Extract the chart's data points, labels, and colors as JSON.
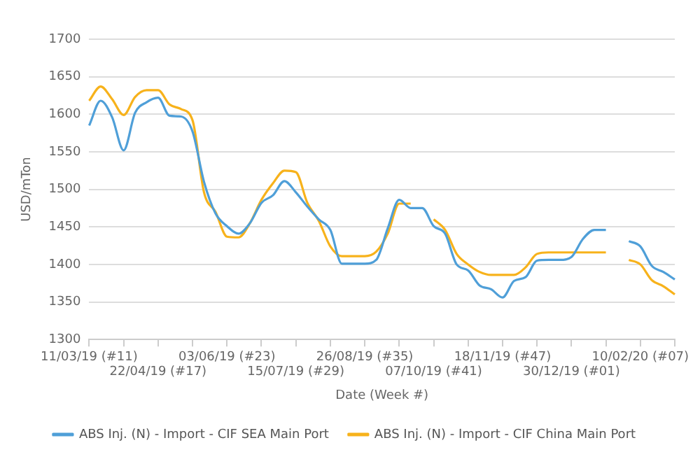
{
  "chart_data": {
    "type": "line",
    "xlabel": "Date (Week #)",
    "ylabel": "USD/mTon",
    "categories": [
      "11/03/19 (#11)",
      null,
      null,
      null,
      null,
      null,
      "22/04/19 (#17)",
      null,
      null,
      null,
      null,
      null,
      "03/06/19 (#23)",
      null,
      null,
      null,
      null,
      null,
      "15/07/19 (#29)",
      null,
      null,
      null,
      null,
      null,
      "26/08/19 (#35)",
      null,
      null,
      null,
      null,
      null,
      "07/10/19 (#41)",
      null,
      null,
      null,
      null,
      null,
      "18/11/19 (#47)",
      null,
      null,
      null,
      null,
      null,
      "30/12/19 (#01)",
      null,
      null,
      null,
      null,
      null,
      "10/02/20 (#07)",
      null,
      null,
      null
    ],
    "series": [
      {
        "name": "ABS Inj. (N) - Import - CIF SEA Main Port",
        "color": "#4f9fd8",
        "values": [
          1585,
          1618,
          1596,
          1552,
          1602,
          1616,
          1622,
          1598,
          1597,
          1577,
          1510,
          1468,
          1451,
          1441,
          1455,
          1482,
          1492,
          1511,
          1496,
          1477,
          1460,
          1446,
          1401,
          1401,
          1401,
          1406,
          1448,
          1486,
          1475,
          1475,
          1451,
          1441,
          1400,
          1392,
          1372,
          1367,
          1356,
          1378,
          1383,
          1405,
          1406,
          1406,
          1410,
          1434,
          1446,
          1446,
          null,
          1431,
          1424,
          1398,
          1390,
          1380
        ]
      },
      {
        "name": "ABS Inj. (N) - Import - CIF China Main Port",
        "color": "#f7b21b",
        "values": [
          1618,
          1637,
          1620,
          1599,
          1623,
          1632,
          1632,
          1613,
          1607,
          1592,
          1496,
          1470,
          1437,
          1436,
          1455,
          1486,
          1508,
          1525,
          1523,
          1482,
          1458,
          1424,
          1411,
          1411,
          1411,
          1417,
          1441,
          1481,
          1481,
          null,
          1460,
          1446,
          1414,
          1400,
          1390,
          1386,
          1386,
          1386,
          1396,
          1414,
          1416,
          1416,
          1416,
          1416,
          1416,
          1416,
          null,
          1406,
          1400,
          1379,
          1371,
          1360
        ]
      }
    ],
    "ylim": [
      1300,
      1700
    ],
    "yticks": [
      1300,
      1350,
      1400,
      1450,
      1500,
      1550,
      1600,
      1650,
      1700
    ],
    "grid": "y",
    "legend": "bottom",
    "marker": "none",
    "line_style": "solid"
  }
}
